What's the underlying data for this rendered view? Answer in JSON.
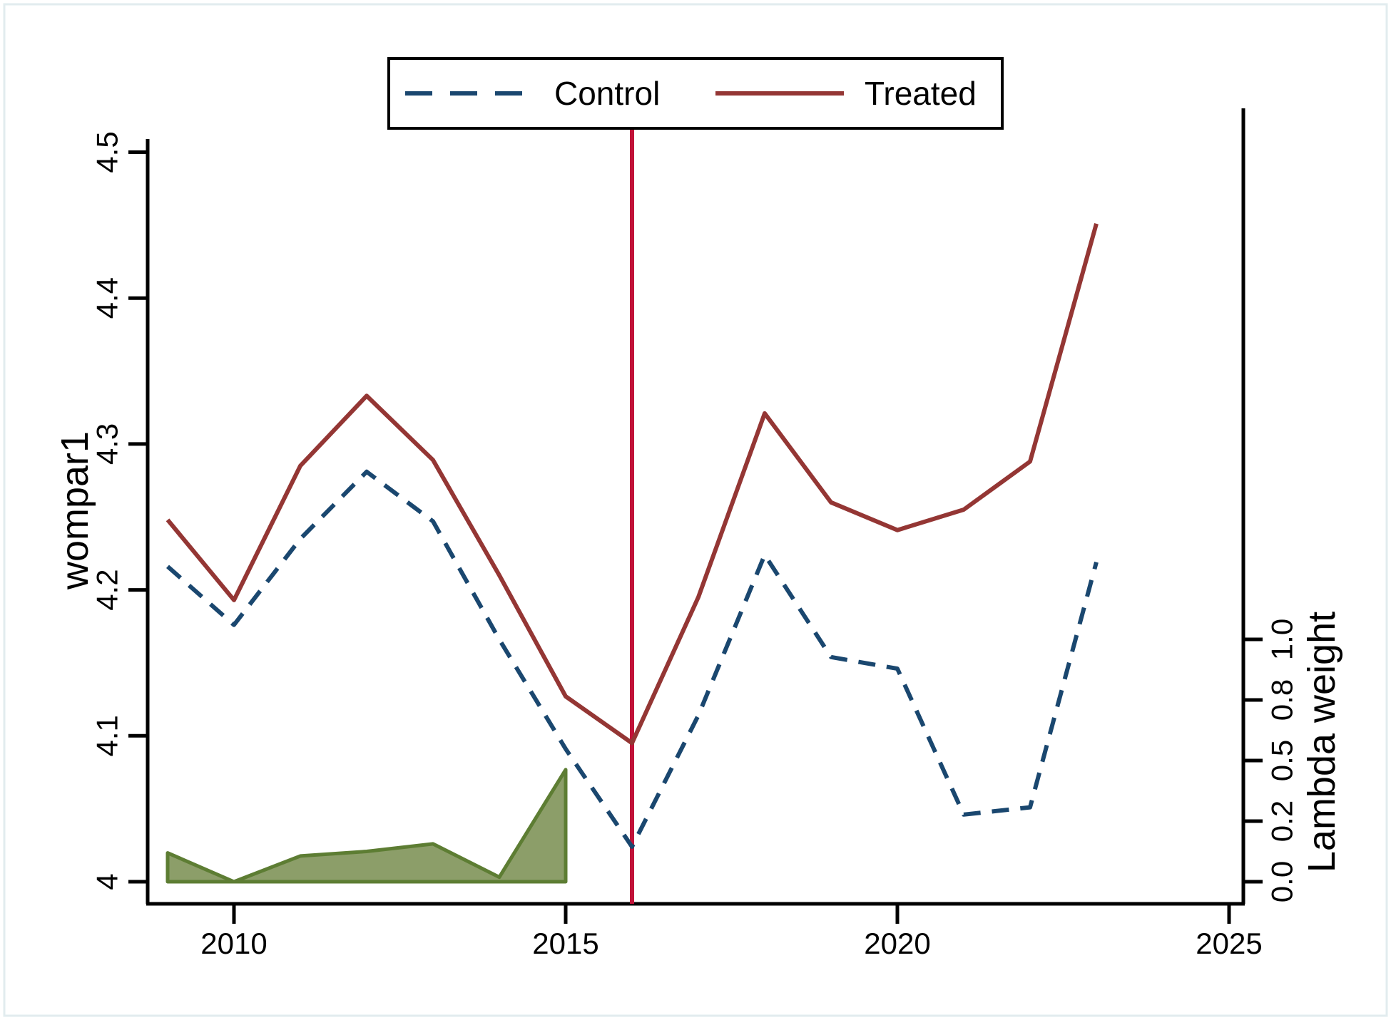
{
  "figure": {
    "background": "#ffffff",
    "frame_border_color": "#e2ecef"
  },
  "legend": {
    "control_label": "Control",
    "treated_label": "Treated"
  },
  "axes": {
    "x": {
      "tick_labels": [
        "2010",
        "2015",
        "2020",
        "2025"
      ],
      "tick_values": [
        2010,
        2015,
        2020,
        2025
      ]
    },
    "y_left": {
      "title": "wompar1",
      "tick_labels": [
        "4",
        "4.1",
        "4.2",
        "4.3",
        "4.4",
        "4.5"
      ],
      "tick_values": [
        4,
        4.1,
        4.2,
        4.3,
        4.4,
        4.5
      ]
    },
    "y_right": {
      "title": "Lambda weight",
      "tick_labels": [
        "0.0",
        "0.2",
        "0.5",
        "0.8",
        "1.0"
      ],
      "tick_values": [
        0,
        0.2,
        0.5,
        0.8,
        1.0
      ]
    }
  },
  "colors": {
    "treated_line": "#943634",
    "control_line": "#1a476f",
    "treatment_vline": "#c11238",
    "lambda_fill": "#8c9e69",
    "lambda_edge": "#5d7d33",
    "axis": "#000000"
  },
  "chart_data": {
    "type": "line",
    "title": "",
    "xlabel": "",
    "ylabel": "wompar1",
    "y2label": "Lambda weight",
    "x": [
      2009,
      2010,
      2011,
      2012,
      2013,
      2014,
      2015,
      2016,
      2017,
      2018,
      2019,
      2020,
      2021,
      2022,
      2023
    ],
    "series": [
      {
        "name": "Treated",
        "style": "solid",
        "axis": "left",
        "values": [
          4.248,
          4.193,
          4.285,
          4.333,
          4.289,
          4.21,
          4.127,
          4.095,
          4.195,
          4.321,
          4.26,
          4.241,
          4.255,
          4.288,
          4.451
        ]
      },
      {
        "name": "Control",
        "style": "dashed",
        "axis": "left",
        "values": [
          4.216,
          4.176,
          4.235,
          4.281,
          4.247,
          4.166,
          4.091,
          4.024,
          4.114,
          4.224,
          4.154,
          4.146,
          4.046,
          4.051,
          4.219
        ]
      },
      {
        "name": "Lambda weight",
        "style": "area",
        "axis": "right",
        "x": [
          2009,
          2010,
          2011,
          2012,
          2013,
          2014,
          2015
        ],
        "values": [
          0.095,
          0.0,
          0.085,
          0.1,
          0.125,
          0.015,
          0.455
        ]
      }
    ],
    "vline": {
      "x": 2016
    },
    "ylim": [
      4,
      4.5
    ],
    "y2lim": [
      0,
      1
    ],
    "xlim": [
      2008.7,
      2025.2
    ],
    "legend_position": "top",
    "grid": false
  }
}
